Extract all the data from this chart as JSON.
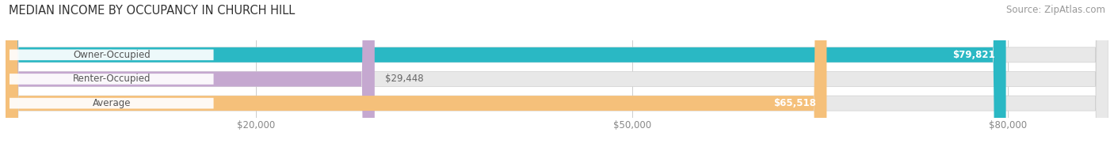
{
  "title": "MEDIAN INCOME BY OCCUPANCY IN CHURCH HILL",
  "source": "Source: ZipAtlas.com",
  "categories": [
    "Owner-Occupied",
    "Renter-Occupied",
    "Average"
  ],
  "values": [
    79821,
    29448,
    65518
  ],
  "bar_colors": [
    "#2ab8c4",
    "#c5a8d0",
    "#f5c07a"
  ],
  "bar_bg_color": "#e8e8e8",
  "value_labels": [
    "$79,821",
    "$29,448",
    "$65,518"
  ],
  "xlim_max": 88000,
  "xticks": [
    20000,
    50000,
    80000
  ],
  "xtick_labels": [
    "$20,000",
    "$50,000",
    "$80,000"
  ],
  "title_fontsize": 10.5,
  "source_fontsize": 8.5,
  "label_fontsize": 8.5,
  "value_fontsize": 8.5,
  "bar_height": 0.62,
  "figsize": [
    14.06,
    1.96
  ],
  "dpi": 100
}
